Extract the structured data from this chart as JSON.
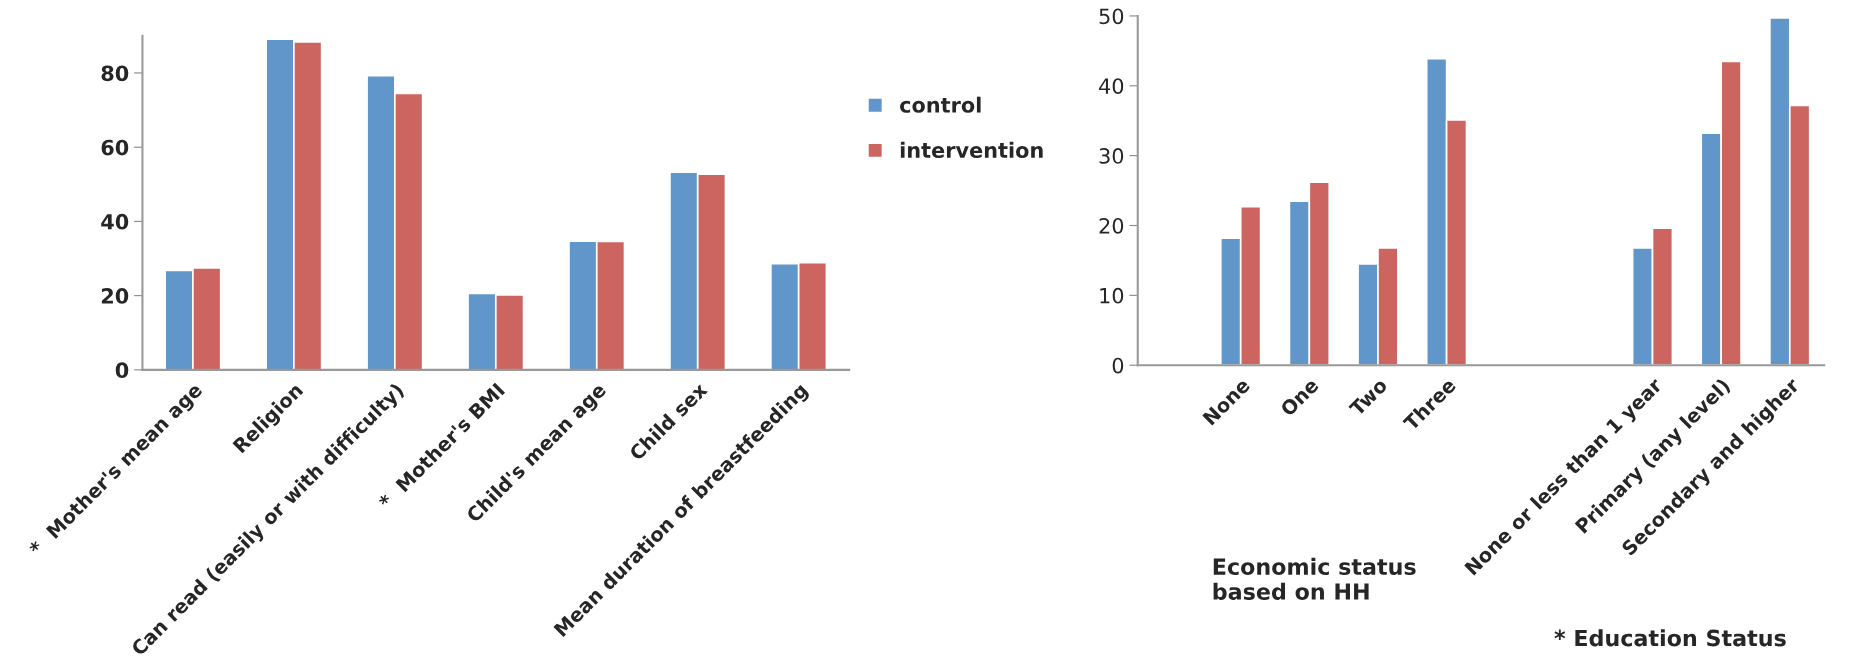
{
  "chart_data": [
    {
      "type": "bar",
      "categories": [
        "*  Mother's mean age",
        "Religion",
        "Can read (easily or with difficulty)",
        "*  Mother's BMI",
        "Child's mean age",
        "Child sex",
        "Mean duration of breastfeeding"
      ],
      "series": [
        {
          "name": "control",
          "color": "#6096c9",
          "values": [
            26.8,
            89.1,
            79.3,
            20.6,
            34.7,
            53.3,
            28.6
          ]
        },
        {
          "name": "intervention",
          "color": "#cc6560",
          "values": [
            27.5,
            88.4,
            74.5,
            20.2,
            34.6,
            52.7,
            28.9
          ]
        }
      ],
      "ylim": [
        0,
        90
      ],
      "yticks": [
        0,
        20,
        40,
        60,
        80
      ],
      "legend": "right"
    },
    {
      "type": "bar",
      "categories": [
        null,
        "None",
        "One",
        "Two",
        "Three",
        null,
        null,
        "None or less than 1 year",
        "Primary (any level)",
        "Secondary and higher"
      ],
      "series": [
        {
          "color": "#6096c9",
          "values": [
            null,
            18.2,
            23.5,
            14.5,
            43.9,
            null,
            null,
            16.8,
            33.2,
            49.7
          ]
        },
        {
          "color": "#cc6560",
          "values": [
            null,
            22.7,
            26.2,
            16.8,
            35.1,
            null,
            null,
            19.6,
            43.5,
            37.2
          ]
        }
      ],
      "ylim": [
        0,
        50
      ],
      "yticks": [
        0,
        10,
        20,
        30,
        40,
        50
      ],
      "annotations": [
        "Economic status\nbased on HH",
        "* Education Status"
      ]
    }
  ]
}
